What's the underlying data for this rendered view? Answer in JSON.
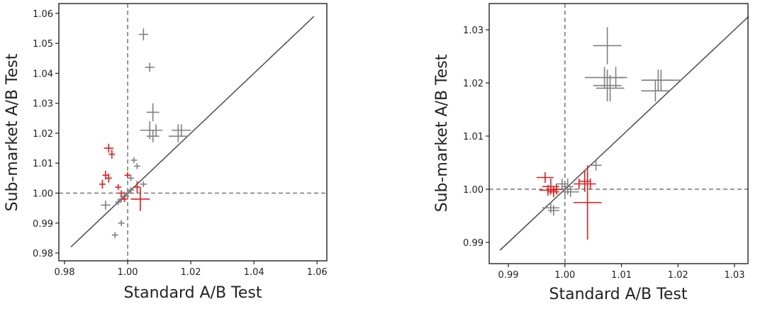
{
  "chart_data": [
    {
      "type": "errorbar-scatter",
      "x_label": "Standard A/B Test",
      "y_label": "Sub-market A/B Test",
      "xlim": [
        0.9782,
        1.0631
      ],
      "ylim": [
        0.9774,
        1.0633
      ],
      "xticks": [
        0.98,
        {
          "value": 1.0,
          "label": "1.00"
        },
        1.02,
        1.04,
        1.06
      ],
      "yticks": [
        0.98,
        0.99,
        {
          "value": 1.0,
          "label": "1.00"
        },
        1.01,
        1.02,
        1.03,
        1.04,
        1.05,
        1.06
      ],
      "reference_x": 1.0,
      "reference_y": 1.0,
      "identity_range": [
        0.982,
        1.059
      ],
      "series": [
        {
          "color": "#808080",
          "x": [
            1.005,
            1.007,
            1.008,
            1.007,
            1.009,
            1.008,
            1.016,
            1.017,
            1.016,
            1.002,
            1.003,
            1.001,
            1.005,
            0.993,
            0.997,
            0.998,
            1.0,
            1.001,
            0.999,
            0.996,
            0.998
          ],
          "values": [
            1.053,
            1.042,
            1.027,
            1.021,
            1.021,
            1.019,
            1.021,
            1.021,
            1.019,
            1.011,
            1.009,
            1.005,
            1.003,
            0.996,
            0.997,
            0.998,
            1.0,
            1.001,
            0.999,
            0.986,
            0.99
          ],
          "xerr": [
            0.0015,
            0.0015,
            0.002,
            0.003,
            0.002,
            0.002,
            0.002,
            0.003,
            0.003,
            0.001,
            0.001,
            0.001,
            0.001,
            0.0015,
            0.001,
            0.001,
            0.0015,
            0.001,
            0.0015,
            0.001,
            0.001
          ],
          "yerr": [
            0.002,
            0.0015,
            0.003,
            0.003,
            0.002,
            0.002,
            0.002,
            0.002,
            0.002,
            0.001,
            0.001,
            0.001,
            0.001,
            0.0015,
            0.001,
            0.001,
            0.0015,
            0.001,
            0.0015,
            0.001,
            0.001
          ]
        },
        {
          "color": "#e41a1c",
          "x": [
            0.994,
            0.995,
            0.993,
            0.994,
            0.992,
            0.997,
            0.998,
            1.0,
            1.004,
            1.003,
            0.999
          ],
          "values": [
            1.015,
            1.013,
            1.006,
            1.005,
            1.003,
            1.002,
            1.0,
            1.006,
            0.998,
            1.002,
            0.998
          ],
          "xerr": [
            0.0015,
            0.001,
            0.001,
            0.001,
            0.001,
            0.001,
            0.001,
            0.001,
            0.003,
            0.001,
            0.001
          ],
          "yerr": [
            0.0015,
            0.0015,
            0.0015,
            0.0015,
            0.0015,
            0.001,
            0.001,
            0.001,
            0.004,
            0.002,
            0.001
          ]
        }
      ]
    },
    {
      "type": "errorbar-scatter",
      "x_label": "Standard A/B Test",
      "y_label": "Sub-market A/B Test",
      "xlim": [
        0.98661,
        1.03238
      ],
      "ylim": [
        0.986,
        1.03493
      ],
      "xticks": [
        0.99,
        {
          "value": 1.0,
          "label": "1.00"
        },
        1.01,
        1.02,
        1.03
      ],
      "yticks": [
        0.99,
        {
          "value": 1.0,
          "label": "1.00"
        },
        1.01,
        1.02,
        1.03
      ],
      "reference_x": 1.0,
      "reference_y": 1.0,
      "identity_range": [
        0.9885,
        1.0325
      ],
      "series": [
        {
          "color": "#808080",
          "x": [
            1.0075,
            1.007,
            1.009,
            1.008,
            1.0075,
            1.0165,
            1.017,
            1.016,
            1.0055,
            0.9975,
            0.998,
            1.0,
            1.0005,
            1.001,
            0.9995
          ],
          "values": [
            1.027,
            1.021,
            1.021,
            1.019,
            1.0195,
            1.0205,
            1.0205,
            1.0185,
            1.0045,
            0.9965,
            0.996,
            1.0,
            1.0005,
            0.9995,
            1.001
          ],
          "xerr": [
            0.0025,
            0.0035,
            0.002,
            0.0025,
            0.0025,
            0.0025,
            0.0035,
            0.0025,
            0.001,
            0.0015,
            0.001,
            0.0015,
            0.001,
            0.0015,
            0.001
          ],
          "yerr": [
            0.0035,
            0.002,
            0.002,
            0.0025,
            0.003,
            0.002,
            0.002,
            0.002,
            0.001,
            0.001,
            0.001,
            0.0015,
            0.0015,
            0.001,
            0.001
          ]
        },
        {
          "color": "#e41a1c",
          "x": [
            0.9965,
            0.9975,
            0.998,
            0.997,
            1.004,
            1.0035,
            1.0045,
            1.0025,
            0.9985
          ],
          "values": [
            1.0022,
            1.0005,
            0.9995,
            0.9998,
            0.9975,
            1.0015,
            1.001,
            1.001,
            1.0
          ],
          "xerr": [
            0.0015,
            0.0015,
            0.001,
            0.0015,
            0.0025,
            0.001,
            0.001,
            0.001,
            0.001
          ],
          "yerr": [
            0.001,
            0.0015,
            0.001,
            0.001,
            0.007,
            0.002,
            0.001,
            0.001,
            0.001
          ]
        }
      ]
    }
  ]
}
